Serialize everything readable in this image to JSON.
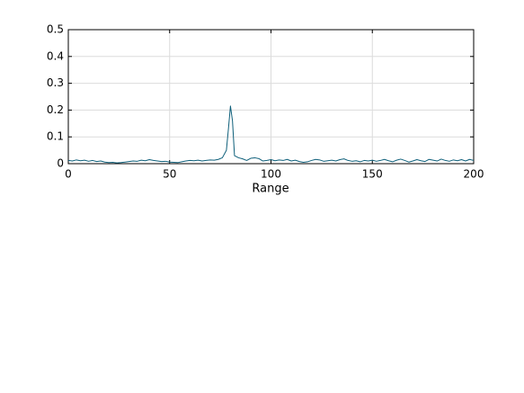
{
  "chart_data": {
    "type": "line",
    "xlabel": "Range",
    "x": [
      0,
      2,
      4,
      6,
      8,
      10,
      12,
      14,
      16,
      18,
      20,
      22,
      24,
      26,
      28,
      30,
      32,
      34,
      36,
      38,
      40,
      42,
      44,
      46,
      48,
      50,
      52,
      54,
      56,
      58,
      60,
      62,
      64,
      66,
      68,
      70,
      72,
      74,
      76,
      78,
      79,
      80,
      81,
      82,
      84,
      86,
      88,
      90,
      92,
      94,
      96,
      98,
      100,
      102,
      104,
      106,
      108,
      110,
      112,
      114,
      116,
      118,
      120,
      122,
      124,
      126,
      128,
      130,
      132,
      134,
      136,
      138,
      140,
      142,
      144,
      146,
      148,
      150,
      152,
      154,
      156,
      158,
      160,
      162,
      164,
      166,
      168,
      170,
      172,
      174,
      176,
      178,
      180,
      182,
      184,
      186,
      188,
      190,
      192,
      194,
      196,
      198,
      200
    ],
    "series": [
      {
        "color": "#0e5f7a",
        "values": [
          0.012,
          0.01,
          0.014,
          0.011,
          0.013,
          0.009,
          0.012,
          0.008,
          0.01,
          0.006,
          0.004,
          0.005,
          0.003,
          0.004,
          0.006,
          0.008,
          0.01,
          0.009,
          0.013,
          0.011,
          0.015,
          0.012,
          0.01,
          0.008,
          0.009,
          0.006,
          0.005,
          0.004,
          0.007,
          0.01,
          0.012,
          0.011,
          0.013,
          0.01,
          0.012,
          0.014,
          0.013,
          0.016,
          0.022,
          0.05,
          0.13,
          0.215,
          0.16,
          0.03,
          0.022,
          0.018,
          0.012,
          0.02,
          0.022,
          0.019,
          0.01,
          0.012,
          0.015,
          0.011,
          0.014,
          0.012,
          0.016,
          0.01,
          0.013,
          0.008,
          0.005,
          0.007,
          0.012,
          0.016,
          0.014,
          0.009,
          0.011,
          0.013,
          0.01,
          0.015,
          0.018,
          0.012,
          0.009,
          0.011,
          0.007,
          0.012,
          0.01,
          0.013,
          0.009,
          0.012,
          0.016,
          0.011,
          0.007,
          0.013,
          0.017,
          0.012,
          0.006,
          0.01,
          0.015,
          0.011,
          0.008,
          0.016,
          0.013,
          0.01,
          0.017,
          0.012,
          0.009,
          0.014,
          0.011,
          0.015,
          0.01,
          0.016,
          0.012
        ]
      }
    ],
    "xlim": [
      0,
      200
    ],
    "xticks": [
      0,
      50,
      100,
      150,
      200
    ],
    "ylim": [
      0,
      0.5
    ],
    "yticks": [
      0,
      0.1,
      0.2,
      0.3,
      0.4,
      0.5
    ],
    "grid": true
  }
}
